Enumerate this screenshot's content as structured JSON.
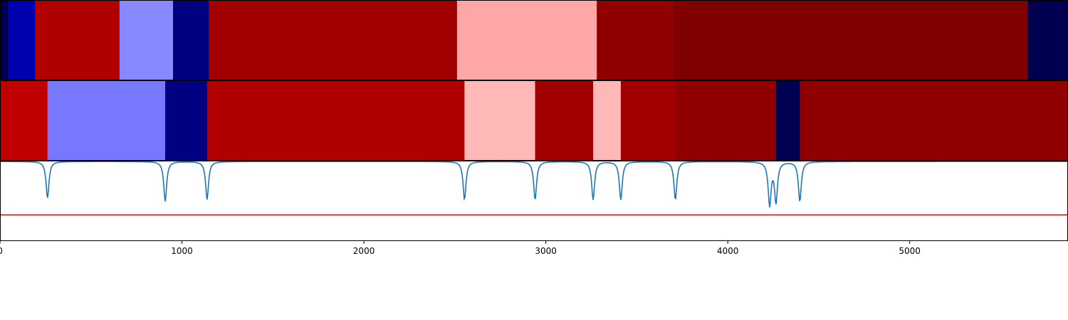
{
  "chart_data": {
    "type": "heatmap",
    "title": "",
    "xlabel": "",
    "ylabel": "",
    "xlim": [
      0,
      5870
    ],
    "x_ticks": [
      {
        "value": 0,
        "label": "0"
      },
      {
        "value": 1000,
        "label": "1000"
      },
      {
        "value": 2000,
        "label": "2000"
      },
      {
        "value": 3000,
        "label": "3000"
      },
      {
        "value": 4000,
        "label": "4000"
      },
      {
        "value": 5000,
        "label": "5000"
      }
    ],
    "colormap": "seismic",
    "rows": [
      {
        "segments": [
          {
            "start": 0,
            "end": 45,
            "color": "#000050"
          },
          {
            "start": 45,
            "end": 192,
            "color": "#0000b0"
          },
          {
            "start": 192,
            "end": 657,
            "color": "#b00000"
          },
          {
            "start": 657,
            "end": 951,
            "color": "#8888ff"
          },
          {
            "start": 951,
            "end": 1147,
            "color": "#000080"
          },
          {
            "start": 1147,
            "end": 2512,
            "color": "#a00000"
          },
          {
            "start": 2512,
            "end": 3280,
            "color": "#ffa6a6"
          },
          {
            "start": 3280,
            "end": 3700,
            "color": "#900000"
          },
          {
            "start": 3700,
            "end": 5649,
            "color": "#800000"
          },
          {
            "start": 5649,
            "end": 5870,
            "color": "#000050"
          }
        ]
      },
      {
        "segments": [
          {
            "start": 0,
            "end": 261,
            "color": "#c00000"
          },
          {
            "start": 261,
            "end": 908,
            "color": "#7878ff"
          },
          {
            "start": 908,
            "end": 1138,
            "color": "#000080"
          },
          {
            "start": 1138,
            "end": 2553,
            "color": "#b00000"
          },
          {
            "start": 2553,
            "end": 2941,
            "color": "#ffb8b8"
          },
          {
            "start": 2941,
            "end": 3260,
            "color": "#a00000"
          },
          {
            "start": 3260,
            "end": 3412,
            "color": "#ffb8b8"
          },
          {
            "start": 3412,
            "end": 3712,
            "color": "#a00000"
          },
          {
            "start": 3712,
            "end": 4265,
            "color": "#900000"
          },
          {
            "start": 4265,
            "end": 4396,
            "color": "#000050"
          },
          {
            "start": 4396,
            "end": 5870,
            "color": "#900000"
          }
        ]
      }
    ],
    "signal": {
      "color": "#1f77b4",
      "ylim": [
        -1.0,
        0.0
      ],
      "baseline": -0.01,
      "dips": [
        {
          "x": 261,
          "depth": 0.46
        },
        {
          "x": 908,
          "depth": 0.5
        },
        {
          "x": 1138,
          "depth": 0.48
        },
        {
          "x": 2553,
          "depth": 0.48
        },
        {
          "x": 2941,
          "depth": 0.48
        },
        {
          "x": 3260,
          "depth": 0.48
        },
        {
          "x": 3412,
          "depth": 0.48
        },
        {
          "x": 3712,
          "depth": 0.48
        },
        {
          "x": 4230,
          "depth": 0.54
        },
        {
          "x": 4265,
          "depth": 0.5
        },
        {
          "x": 4396,
          "depth": 0.5
        }
      ],
      "threshold": {
        "value": -0.68,
        "color": "#ff0000"
      }
    }
  }
}
